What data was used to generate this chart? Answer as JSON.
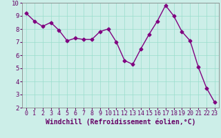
{
  "x": [
    0,
    1,
    2,
    3,
    4,
    5,
    6,
    7,
    8,
    9,
    10,
    11,
    12,
    13,
    14,
    15,
    16,
    17,
    18,
    19,
    20,
    21,
    22,
    23
  ],
  "y": [
    9.2,
    8.6,
    8.2,
    8.5,
    7.9,
    7.1,
    7.3,
    7.2,
    7.2,
    7.8,
    8.0,
    7.0,
    5.6,
    5.3,
    6.5,
    7.6,
    8.6,
    9.8,
    9.0,
    7.8,
    7.1,
    5.1,
    3.5,
    2.4
  ],
  "line_color": "#800080",
  "marker": "D",
  "markersize": 2.5,
  "linewidth": 1.0,
  "bg_color": "#cceee8",
  "grid_color": "#99ddcc",
  "xlabel": "Windchill (Refroidissement éolien,°C)",
  "xlabel_fontsize": 7,
  "tick_fontsize": 6.5,
  "xlim": [
    -0.5,
    23.5
  ],
  "ylim": [
    2,
    10
  ],
  "yticks": [
    2,
    3,
    4,
    5,
    6,
    7,
    8,
    9,
    10
  ],
  "xticks": [
    0,
    1,
    2,
    3,
    4,
    5,
    6,
    7,
    8,
    9,
    10,
    11,
    12,
    13,
    14,
    15,
    16,
    17,
    18,
    19,
    20,
    21,
    22,
    23
  ],
  "label_color": "#660066"
}
